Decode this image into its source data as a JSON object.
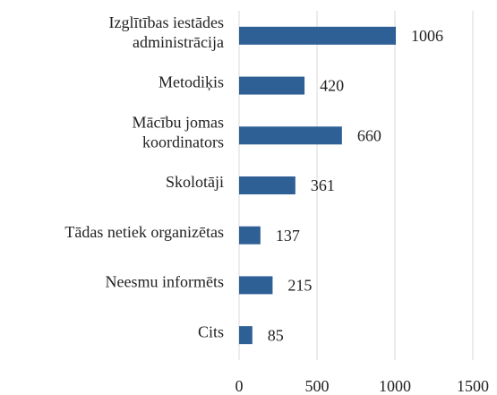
{
  "chart_data": {
    "type": "bar",
    "orientation": "horizontal",
    "categories": [
      "Izglītības iestādes\nadministrācija",
      "Metodiķis",
      "Mācību jomas\nkoordinators",
      "Skolotāji",
      "Tādas netiek organizētas",
      "Neesmu informēts",
      "Cits"
    ],
    "values": [
      1006,
      420,
      660,
      361,
      137,
      215,
      85
    ],
    "color": "#2e6096",
    "xlim": [
      0,
      1500
    ],
    "xticks": [
      0,
      500,
      1000,
      1500
    ],
    "grid": true
  }
}
